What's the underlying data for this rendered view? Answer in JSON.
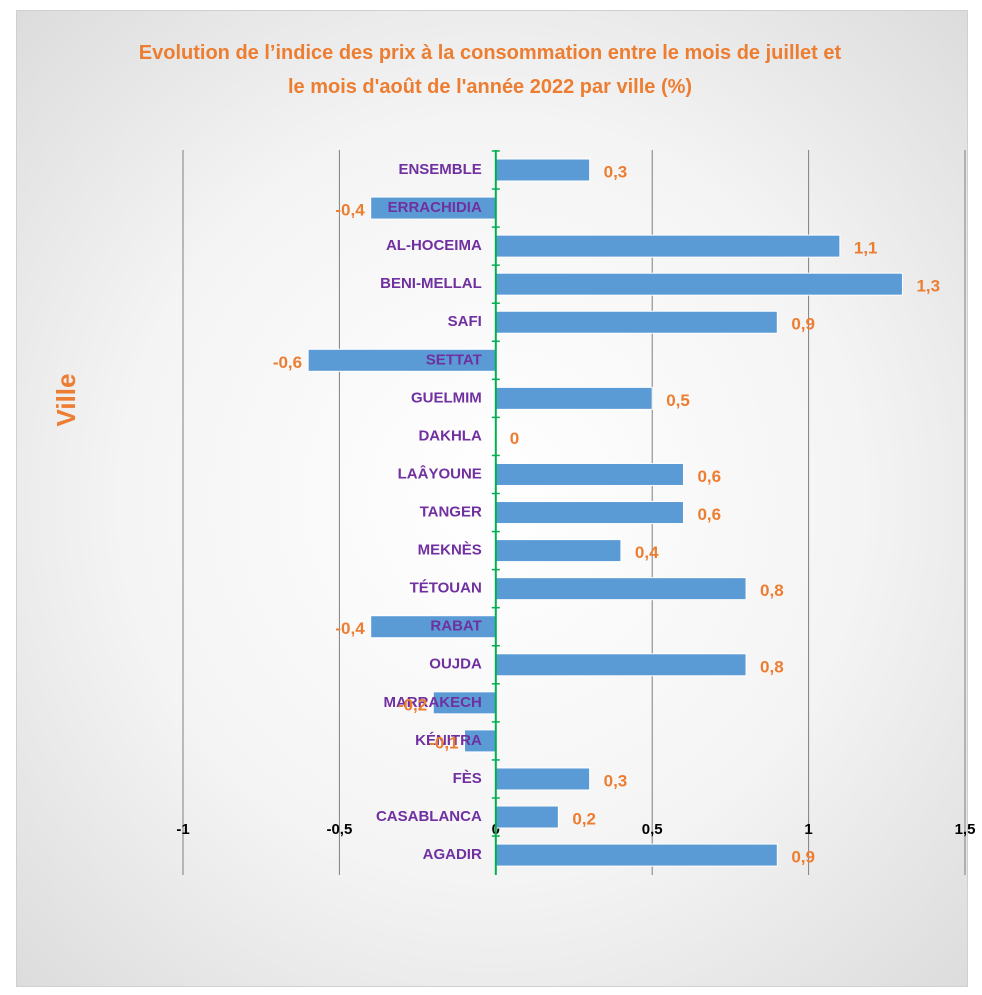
{
  "chart_data": {
    "type": "barh",
    "title": "Evolution de l’indice des prix à la consommation entre le mois de juillet et le mois d'août de l'année 2022 par ville (%)",
    "ylabel": "Ville",
    "categories": [
      "ENSEMBLE",
      "ERRACHIDIA",
      "AL-HOCEIMA",
      "BENI-MELLAL",
      "SAFI",
      "SETTAT",
      "GUELMIM",
      "DAKHLA",
      "LAÂYOUNE",
      "TANGER",
      "MEKNÈS",
      "TÉTOUAN",
      "RABAT",
      "OUJDA",
      "MARRAKECH",
      "KÉNITRA",
      "FÈS",
      "CASABLANCA",
      "AGADIR"
    ],
    "values": [
      0.3,
      -0.4,
      1.1,
      1.3,
      0.9,
      -0.6,
      0.5,
      0,
      0.6,
      0.6,
      0.4,
      0.8,
      -0.4,
      0.8,
      -0.2,
      -0.1,
      0.3,
      0.2,
      0.9
    ],
    "value_labels": [
      "0,3",
      "-0,4",
      "1,1",
      "1,3",
      "0,9",
      "-0,6",
      "0,5",
      "0",
      "0,6",
      "0,6",
      "0,4",
      "0,8",
      "-0,4",
      "0,8",
      "-0,2",
      "-0,1",
      "0,3",
      "0,2",
      "0,9"
    ],
    "color": "#5b9bd5",
    "xlim": [
      -1,
      1.5
    ],
    "xticks": [
      -1,
      {
        "value": -0.5,
        "label": "-0,5"
      },
      0,
      {
        "value": 0.5,
        "label": "0,5"
      },
      1,
      {
        "value": 1.5,
        "label": "1,5"
      }
    ],
    "grid": true
  }
}
